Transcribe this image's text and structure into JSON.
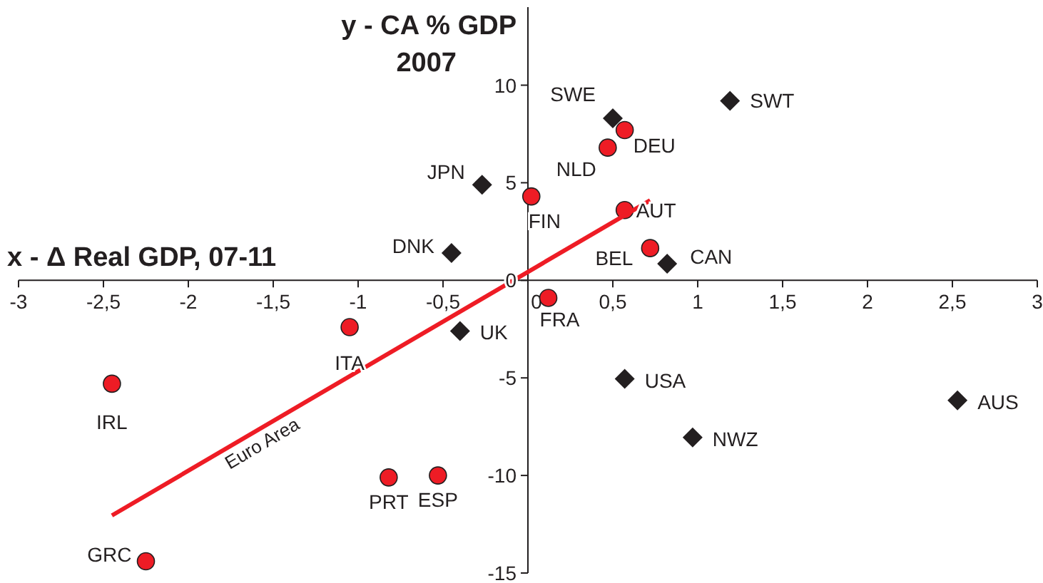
{
  "chart_data": {
    "type": "scatter",
    "xlabel": "x - Δ Real GDP, 07-11",
    "ylabel": "y - CA % GDP 2007",
    "xlim": [
      -3,
      3
    ],
    "ylim": [
      -15,
      14
    ],
    "xticks": [
      {
        "value": -3,
        "label": "-3"
      },
      {
        "value": -2.5,
        "label": "-2,5"
      },
      {
        "value": -2,
        "label": "-2"
      },
      {
        "value": -1.5,
        "label": "-1,5"
      },
      {
        "value": -1,
        "label": "-1"
      },
      {
        "value": -0.5,
        "label": "-0,5"
      },
      {
        "value": 0,
        "label": "0"
      },
      {
        "value": 0.5,
        "label": "0,5"
      },
      {
        "value": 1,
        "label": "1"
      },
      {
        "value": 1.5,
        "label": "1,5"
      },
      {
        "value": 2,
        "label": "2"
      },
      {
        "value": 2.5,
        "label": "2,5"
      },
      {
        "value": 3,
        "label": "3"
      }
    ],
    "yticks": [
      -15,
      -10,
      -5,
      0,
      5,
      10
    ],
    "grid": false,
    "series": [
      {
        "marker": "circle",
        "color": "#ee1c25",
        "x": [
          0.57,
          0.47,
          0.02,
          0.57,
          0.72,
          0.12,
          -1.05,
          -2.45,
          -0.82,
          -0.53,
          -2.25
        ],
        "values": [
          7.7,
          6.8,
          4.3,
          3.6,
          1.65,
          -0.9,
          -2.4,
          -5.3,
          -10.1,
          -10.0,
          -14.4
        ]
      },
      {
        "marker": "diamond",
        "color": "#231f20",
        "x": [
          0.5,
          1.19,
          -0.27,
          -0.45,
          0.82,
          -0.4,
          0.57,
          2.53,
          0.97
        ],
        "values": [
          8.3,
          9.2,
          4.9,
          1.4,
          0.85,
          -2.6,
          -5.05,
          -6.15,
          -8.05
        ]
      },
      {
        "type": "line",
        "name": "Euro Area",
        "color": "#ee1c25",
        "x": [
          -2.45,
          0.72
        ],
        "values": [
          -12.05,
          4.1
        ]
      }
    ],
    "annotations": [
      {
        "text": "SWE",
        "x": 0.5,
        "y": 8.3
      },
      {
        "text": "SWT",
        "x": 1.19,
        "y": 9.2
      },
      {
        "text": "DEU",
        "x": 0.57,
        "y": 7.7
      },
      {
        "text": "NLD",
        "x": 0.47,
        "y": 6.8
      },
      {
        "text": "JPN",
        "x": -0.27,
        "y": 4.9
      },
      {
        "text": "FIN",
        "x": 0.02,
        "y": 4.3
      },
      {
        "text": "AUT",
        "x": 0.57,
        "y": 3.6
      },
      {
        "text": "DNK",
        "x": -0.45,
        "y": 1.4
      },
      {
        "text": "BEL",
        "x": 0.72,
        "y": 1.65
      },
      {
        "text": "CAN",
        "x": 0.82,
        "y": 0.85
      },
      {
        "text": "FRA",
        "x": 0.12,
        "y": -0.9
      },
      {
        "text": "UK",
        "x": -0.4,
        "y": -2.6
      },
      {
        "text": "ITA",
        "x": -1.05,
        "y": -2.4
      },
      {
        "text": "IRL",
        "x": -2.45,
        "y": -5.3
      },
      {
        "text": "USA",
        "x": 0.57,
        "y": -5.05
      },
      {
        "text": "AUS",
        "x": 2.53,
        "y": -6.15
      },
      {
        "text": "NWZ",
        "x": 0.97,
        "y": -8.05
      },
      {
        "text": "PRT",
        "x": -0.82,
        "y": -10.1
      },
      {
        "text": "ESP",
        "x": -0.53,
        "y": -10.0
      },
      {
        "text": "GRC",
        "x": -2.25,
        "y": -14.4
      }
    ]
  }
}
